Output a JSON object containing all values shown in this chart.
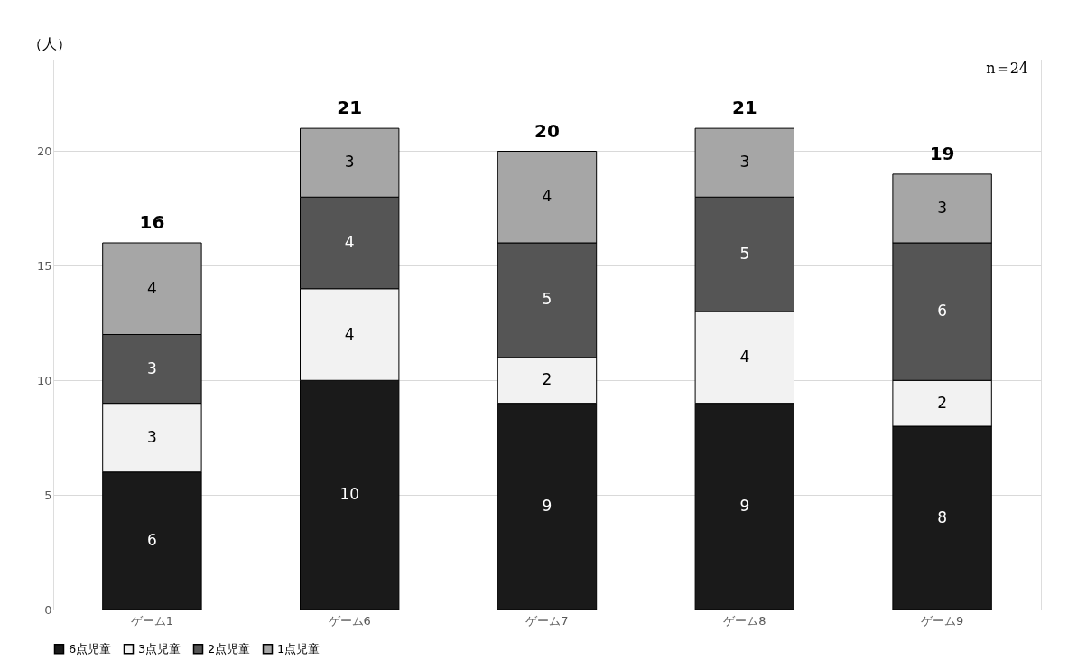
{
  "chart_data": {
    "type": "bar",
    "stacked": true,
    "ylabel": "（人）",
    "categories": [
      "ゲーム1",
      "ゲーム6",
      "ゲーム7",
      "ゲーム8",
      "ゲーム9"
    ],
    "series": [
      {
        "name": "6点児童",
        "color": "#1a1a1a",
        "values": [
          6,
          10,
          9,
          9,
          8
        ]
      },
      {
        "name": "3点児童",
        "color": "#f2f2f2",
        "values": [
          3,
          4,
          2,
          4,
          2
        ]
      },
      {
        "name": "2点児童",
        "color": "#555555",
        "values": [
          3,
          4,
          5,
          5,
          6
        ]
      },
      {
        "name": "1点児童",
        "color": "#a6a6a6",
        "values": [
          4,
          3,
          4,
          3,
          3
        ]
      }
    ],
    "totals": [
      "16",
      "21",
      "20",
      "21",
      "19"
    ],
    "data_labels": true,
    "ylim": [
      0,
      24
    ],
    "yticks": [
      0,
      5,
      10,
      15,
      20
    ],
    "grid": "y",
    "legend": "bottom",
    "annotations": [
      "n＝24"
    ]
  }
}
